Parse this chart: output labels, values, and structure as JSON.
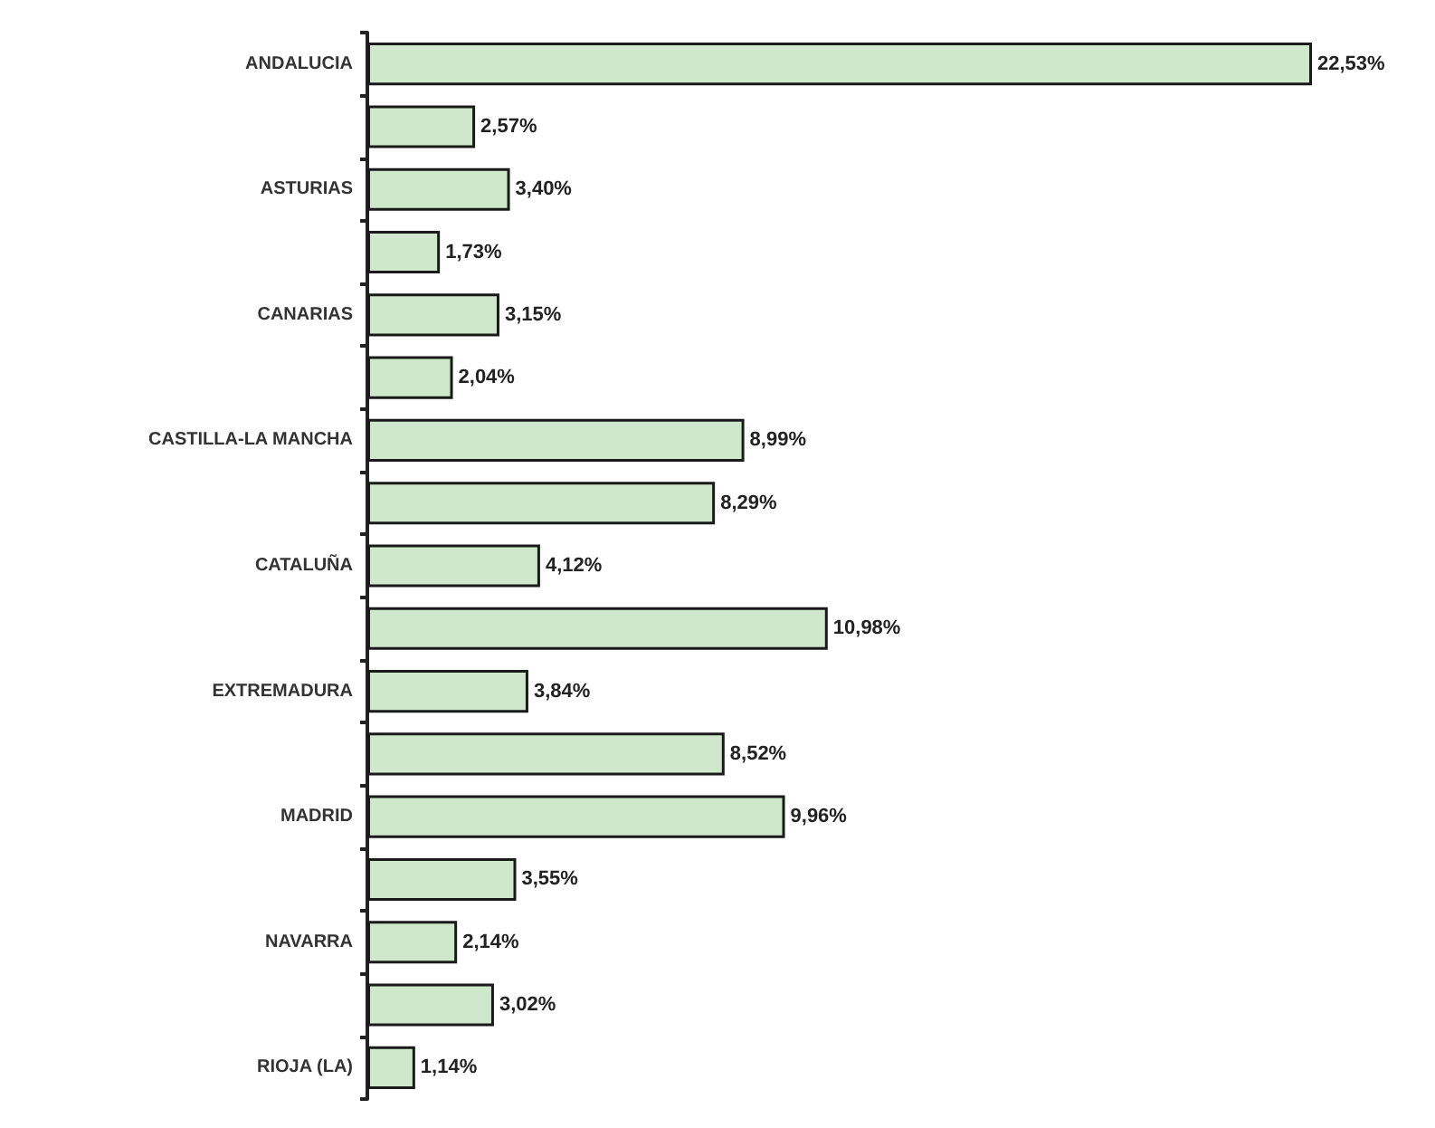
{
  "chart_data": {
    "type": "bar",
    "orientation": "horizontal",
    "categories": [
      "ANDALUCIA",
      null,
      "ASTURIAS",
      null,
      "CANARIAS",
      null,
      "CASTILLA-LA MANCHA",
      null,
      "CATALUÑA",
      null,
      "EXTREMADURA",
      null,
      "MADRID",
      null,
      "NAVARRA",
      null,
      "RIOJA (LA)"
    ],
    "values": [
      22.53,
      2.57,
      3.4,
      1.73,
      3.15,
      2.04,
      8.99,
      8.29,
      4.12,
      10.98,
      3.84,
      8.52,
      9.96,
      3.55,
      2.14,
      3.02,
      1.14
    ],
    "value_labels": [
      "22,53%",
      "2,57%",
      "3,40%",
      "1,73%",
      "3,15%",
      "2,04%",
      "8,99%",
      "8,29%",
      "4,12%",
      "10,98%",
      "3,84%",
      "8,52%",
      "9,96%",
      "3,55%",
      "2,14%",
      "3,02%",
      "1,14%"
    ],
    "color": "#cfe8cc",
    "grid": false
  }
}
